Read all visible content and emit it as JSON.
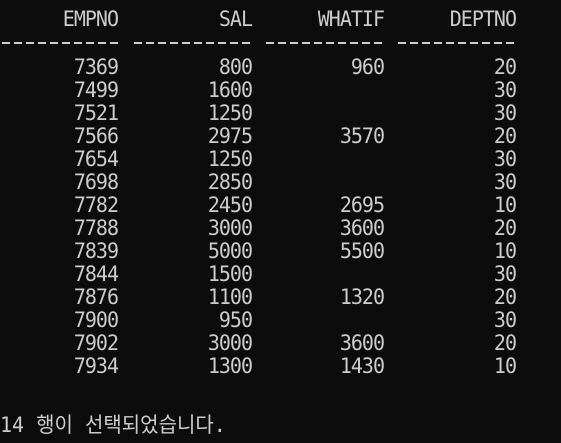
{
  "columns": [
    "EMPNO",
    "SAL",
    "WHATIF",
    "DEPTNO"
  ],
  "rows": [
    [
      "7369",
      "800",
      "960",
      "20"
    ],
    [
      "7499",
      "1600",
      "",
      "30"
    ],
    [
      "7521",
      "1250",
      "",
      "30"
    ],
    [
      "7566",
      "2975",
      "3570",
      "20"
    ],
    [
      "7654",
      "1250",
      "",
      "30"
    ],
    [
      "7698",
      "2850",
      "",
      "30"
    ],
    [
      "7782",
      "2450",
      "2695",
      "10"
    ],
    [
      "7788",
      "3000",
      "3600",
      "20"
    ],
    [
      "7839",
      "5000",
      "5500",
      "10"
    ],
    [
      "7844",
      "1500",
      "",
      "30"
    ],
    [
      "7876",
      "1100",
      "1320",
      "20"
    ],
    [
      "7900",
      "950",
      "",
      "30"
    ],
    [
      "7902",
      "3000",
      "3600",
      "20"
    ],
    [
      "7934",
      "1300",
      "1430",
      "10"
    ]
  ],
  "status_message": "14 행이 선택되었습니다.",
  "colors": {
    "background": "#0c0c0c",
    "text": "#cccccc"
  }
}
